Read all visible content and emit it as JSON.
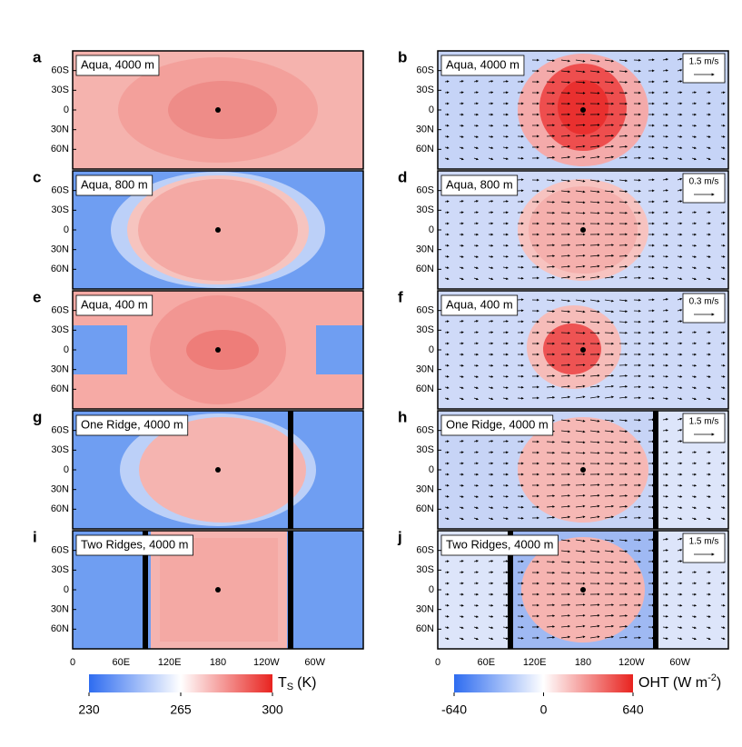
{
  "figure": {
    "panels": [
      {
        "letter": "a",
        "label": "Aqua, 4000 m"
      },
      {
        "letter": "b",
        "label": "Aqua, 4000 m",
        "scale": "1.5 m/s"
      },
      {
        "letter": "c",
        "label": "Aqua, 800 m"
      },
      {
        "letter": "d",
        "label": "Aqua, 800 m",
        "scale": "0.3 m/s"
      },
      {
        "letter": "e",
        "label": "Aqua, 400 m"
      },
      {
        "letter": "f",
        "label": "Aqua, 400 m",
        "scale": "0.3 m/s"
      },
      {
        "letter": "g",
        "label": "One Ridge, 4000 m"
      },
      {
        "letter": "h",
        "label": "One Ridge, 4000 m",
        "scale": "1.5 m/s"
      },
      {
        "letter": "i",
        "label": "Two Ridges, 4000 m"
      },
      {
        "letter": "j",
        "label": "Two Ridges, 4000 m",
        "scale": "1.5 m/s"
      }
    ],
    "lat_ticks": [
      "60N",
      "30N",
      "0",
      "30S",
      "60S"
    ],
    "lon_ticks": [
      "0",
      "60E",
      "120E",
      "180",
      "120W",
      "60W"
    ],
    "colorbars": [
      {
        "symbol": "T",
        "subscript": "S",
        "unit": "(K)",
        "lim": [
          230,
          300
        ],
        "ticks": [
          230,
          265,
          300
        ]
      },
      {
        "symbol": "OHT (W m",
        "superscript": "-2",
        "close": ")",
        "lim": [
          -640,
          640
        ],
        "ticks": [
          -640,
          0,
          640
        ]
      }
    ]
  }
}
